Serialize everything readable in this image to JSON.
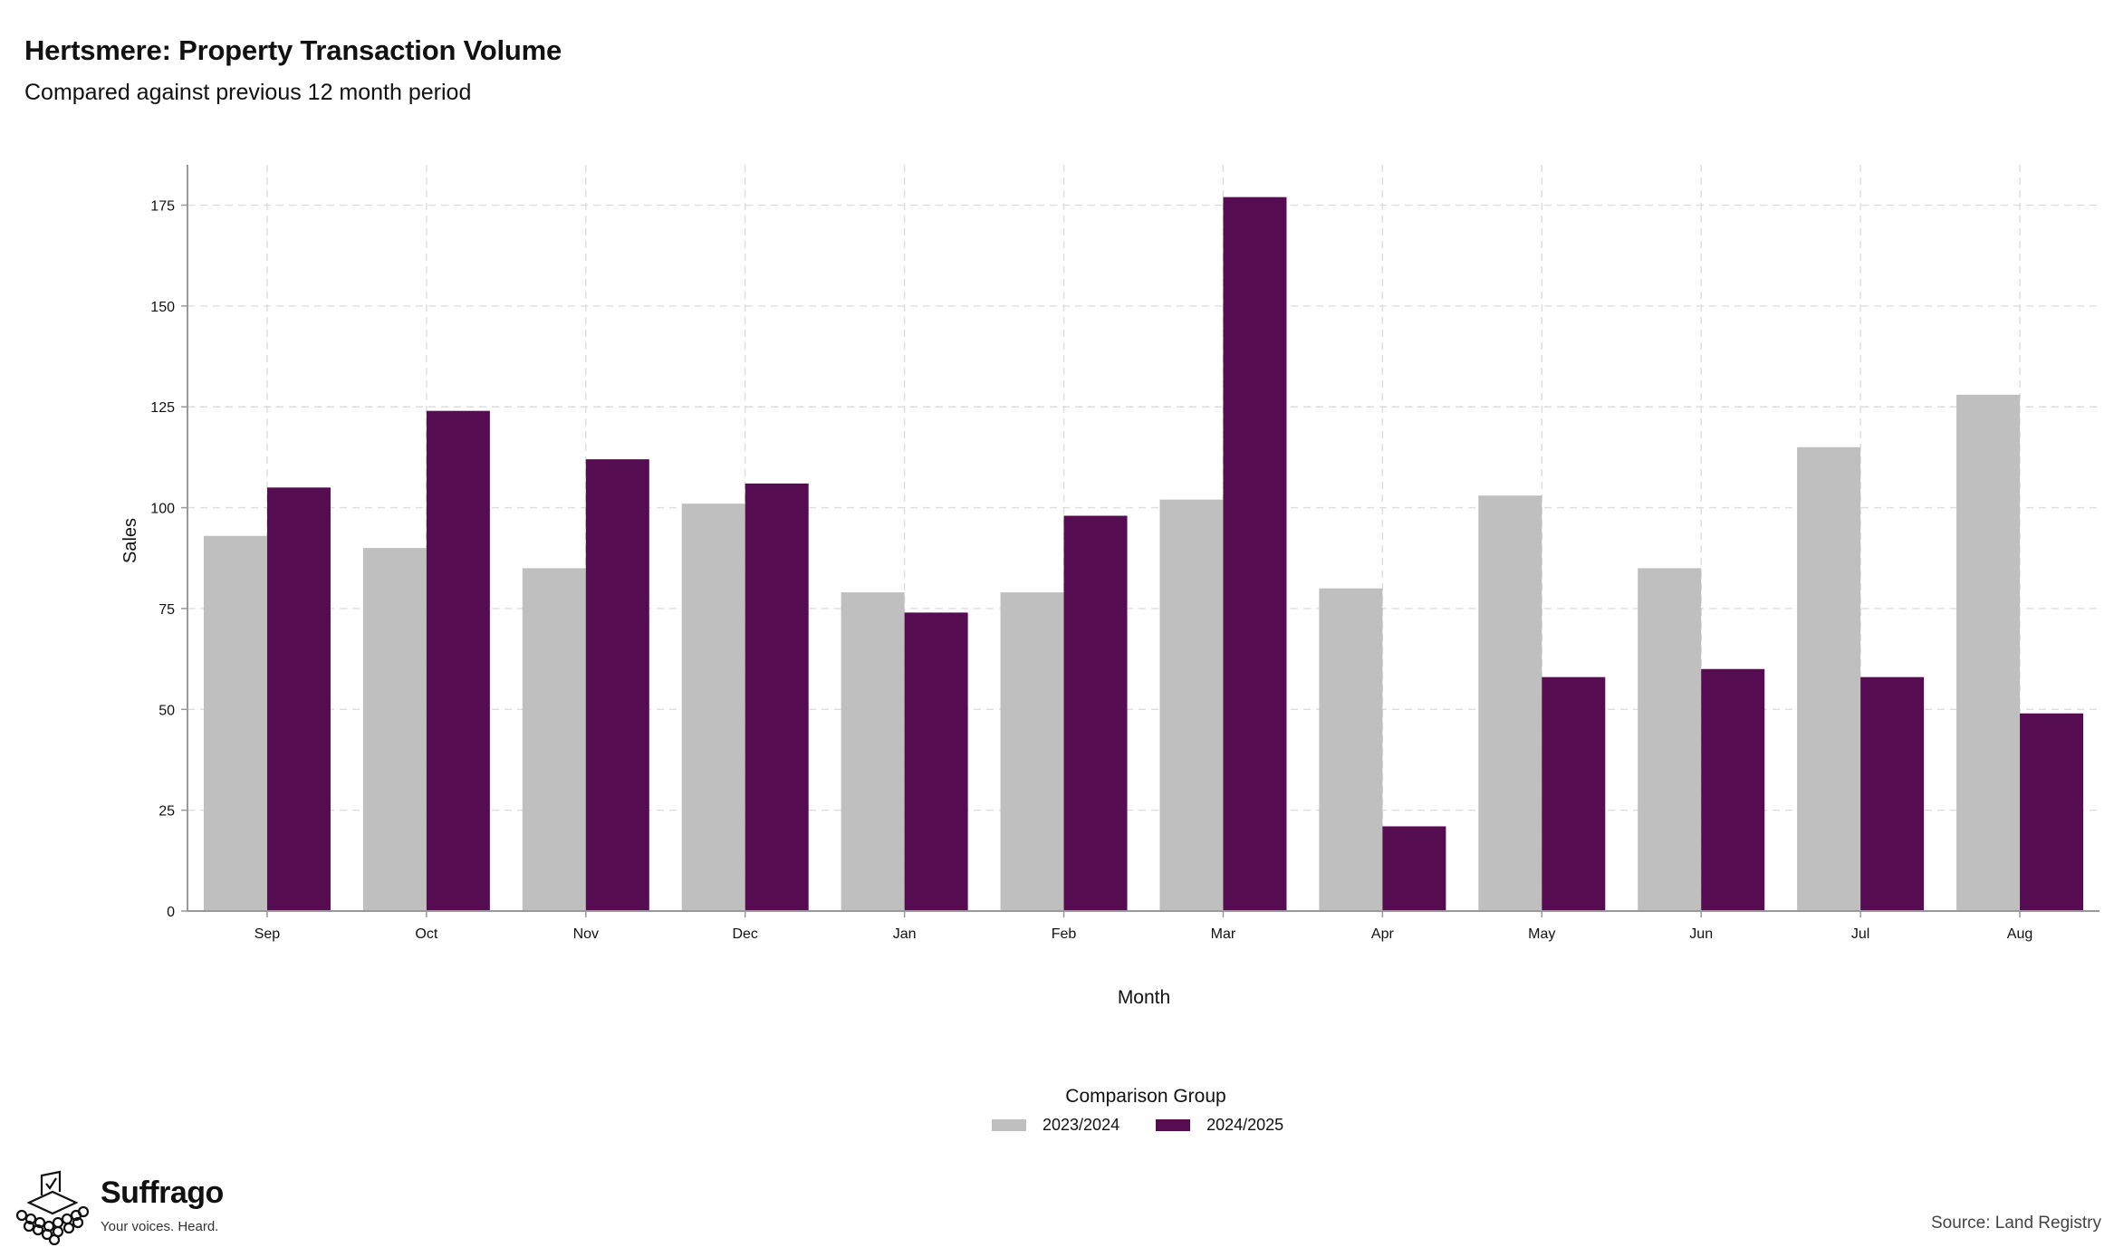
{
  "header": {
    "title": "Hertsmere: Property Transaction Volume",
    "subtitle": "Compared against previous 12 month period"
  },
  "chart_data": {
    "type": "bar",
    "xlabel": "Month",
    "ylabel": "Sales",
    "ylim": [
      0,
      185
    ],
    "yticks": [
      0,
      25,
      50,
      75,
      100,
      125,
      150,
      175
    ],
    "grid": true,
    "legend_position": "bottom",
    "legend_title": "Comparison Group",
    "categories": [
      "Sep",
      "Oct",
      "Nov",
      "Dec",
      "Jan",
      "Feb",
      "Mar",
      "Apr",
      "May",
      "Jun",
      "Jul",
      "Aug"
    ],
    "series": [
      {
        "name": "2023/2024",
        "color": "#bfbfbf",
        "values": [
          93,
          90,
          85,
          101,
          79,
          79,
          102,
          80,
          103,
          85,
          115,
          128
        ]
      },
      {
        "name": "2024/2025",
        "color": "#560c51",
        "values": [
          105,
          124,
          112,
          106,
          74,
          98,
          177,
          21,
          58,
          60,
          58,
          49
        ]
      }
    ]
  },
  "footer": {
    "logo_name": "Suffrago",
    "logo_tagline": "Your voices. Heard.",
    "source": "Source: Land Registry"
  }
}
